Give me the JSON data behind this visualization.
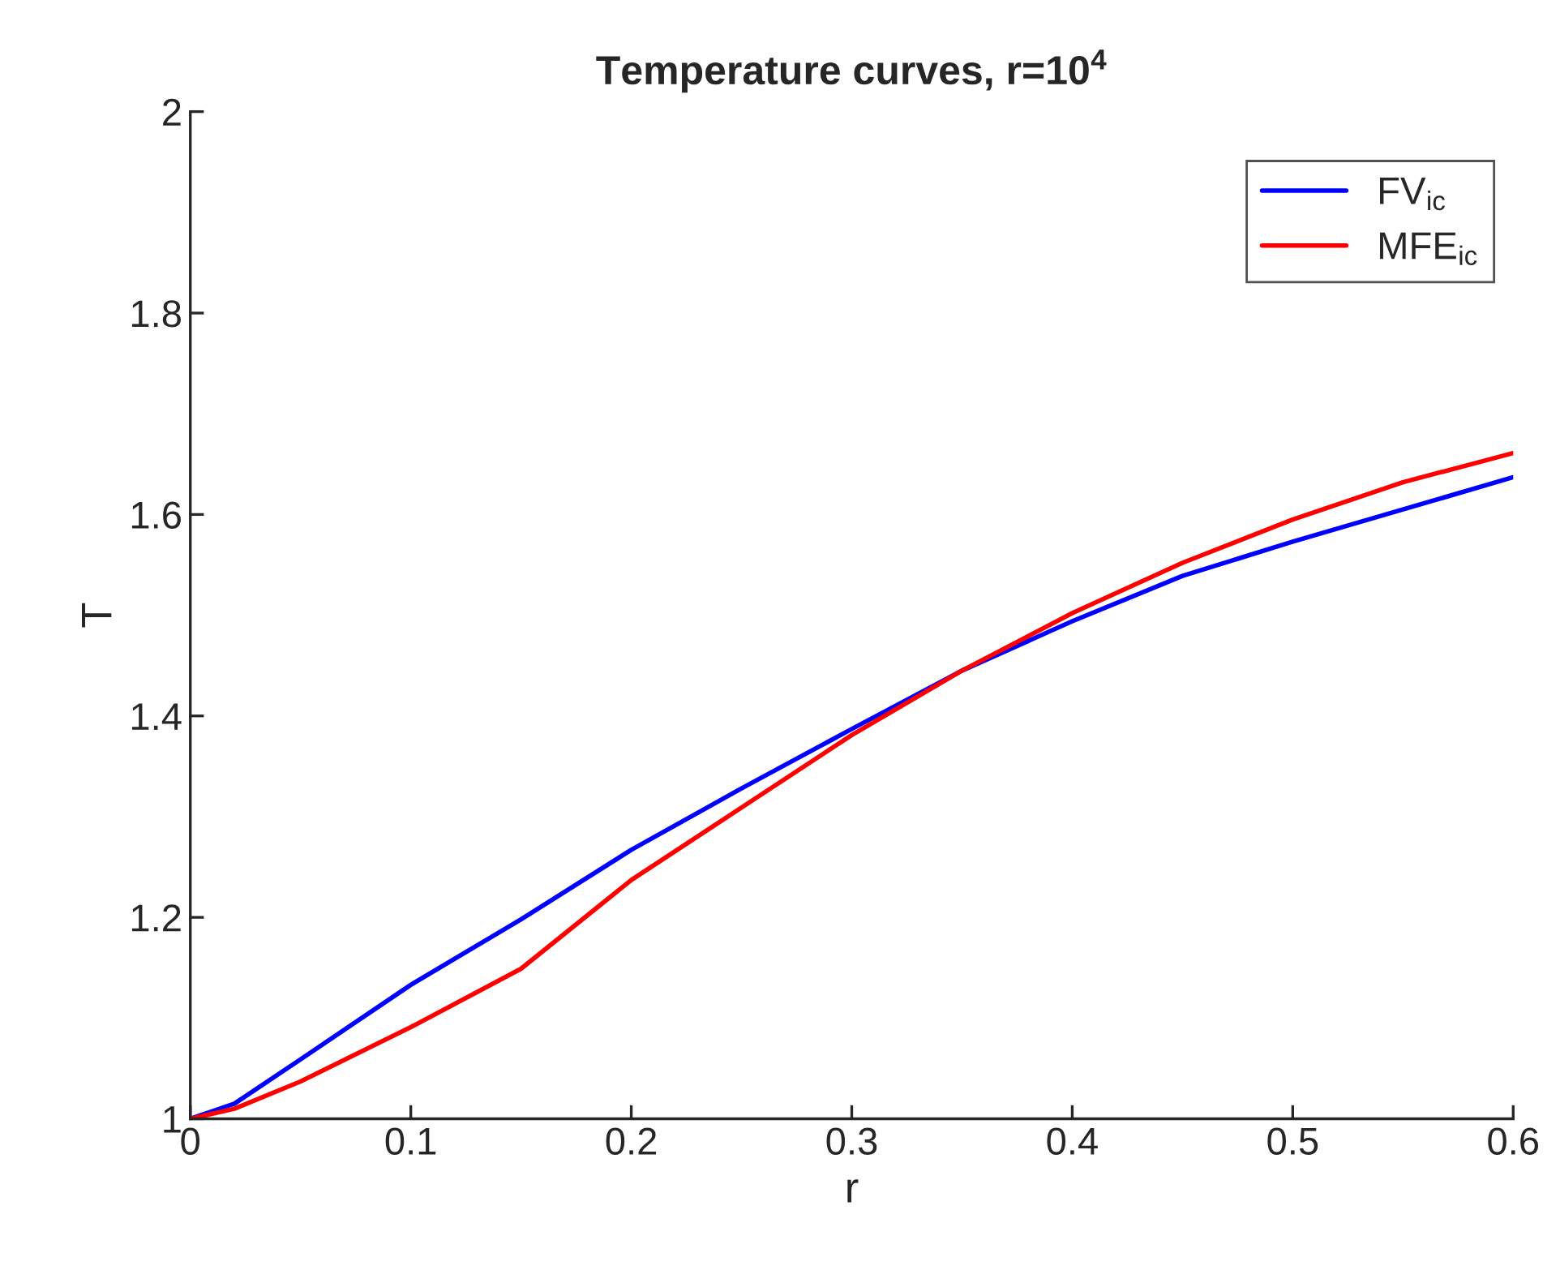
{
  "chart_data": {
    "type": "line",
    "title": "Temperature curves, r=10$^{4}$",
    "xlabel": "r",
    "ylabel": "T",
    "x": [
      0,
      0.02,
      0.05,
      0.1,
      0.15,
      0.2,
      0.25,
      0.3,
      0.35,
      0.4,
      0.45,
      0.5,
      0.55,
      0.6
    ],
    "series": [
      {
        "name": "FV$_{ic}$",
        "color": "#0000ff",
        "values": [
          1.0,
          1.015,
          1.059,
          1.133,
          1.198,
          1.267,
          1.328,
          1.387,
          1.445,
          1.494,
          1.539,
          1.573,
          1.605,
          1.637
        ]
      },
      {
        "name": "MFE$_{ic}$",
        "color": "#ff0000",
        "values": [
          1.0,
          1.01,
          1.037,
          1.091,
          1.149,
          1.237,
          1.309,
          1.381,
          1.445,
          1.502,
          1.552,
          1.595,
          1.632,
          1.661
        ]
      }
    ],
    "xlim": [
      0,
      0.6
    ],
    "ylim": [
      1,
      2
    ],
    "xticks": [
      0,
      0.1,
      0.2,
      0.3,
      0.4,
      0.5,
      0.6
    ],
    "yticks": [
      1,
      1.2,
      1.4,
      1.6,
      1.8,
      2
    ],
    "legend": "top right",
    "line_style": "solid"
  }
}
